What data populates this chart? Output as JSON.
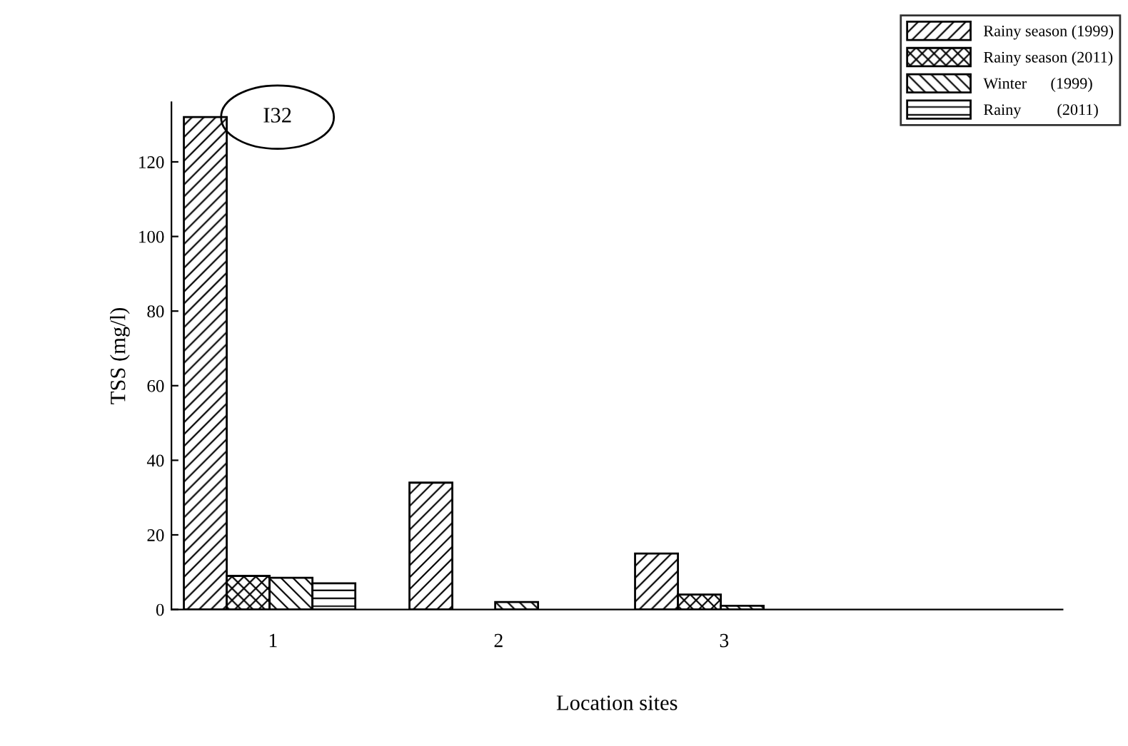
{
  "chart_data": {
    "type": "bar",
    "xlabel": "Location sites",
    "ylabel": "TSS (mg/l)",
    "categories": [
      "1",
      "2",
      "3",
      null
    ],
    "series": [
      {
        "name": "Rainy season (1999)",
        "color": "#000000",
        "values": [
          132,
          34,
          15,
          null
        ]
      },
      {
        "name": "Rainy season (2011)",
        "color": "#000000",
        "values": [
          9,
          null,
          4,
          null
        ]
      },
      {
        "name": "Winter      (1999)",
        "color": "#000000",
        "values": [
          8.5,
          2,
          1,
          null
        ]
      },
      {
        "name": "Rainy         (2011)",
        "color": "#000000",
        "values": [
          7,
          null,
          null,
          null
        ]
      }
    ],
    "ylim": [
      0,
      136
    ],
    "yticks": [
      0,
      20,
      40,
      60,
      80,
      100,
      120
    ],
    "annotations": [
      "I32"
    ],
    "grid": false,
    "legend": "top right"
  }
}
